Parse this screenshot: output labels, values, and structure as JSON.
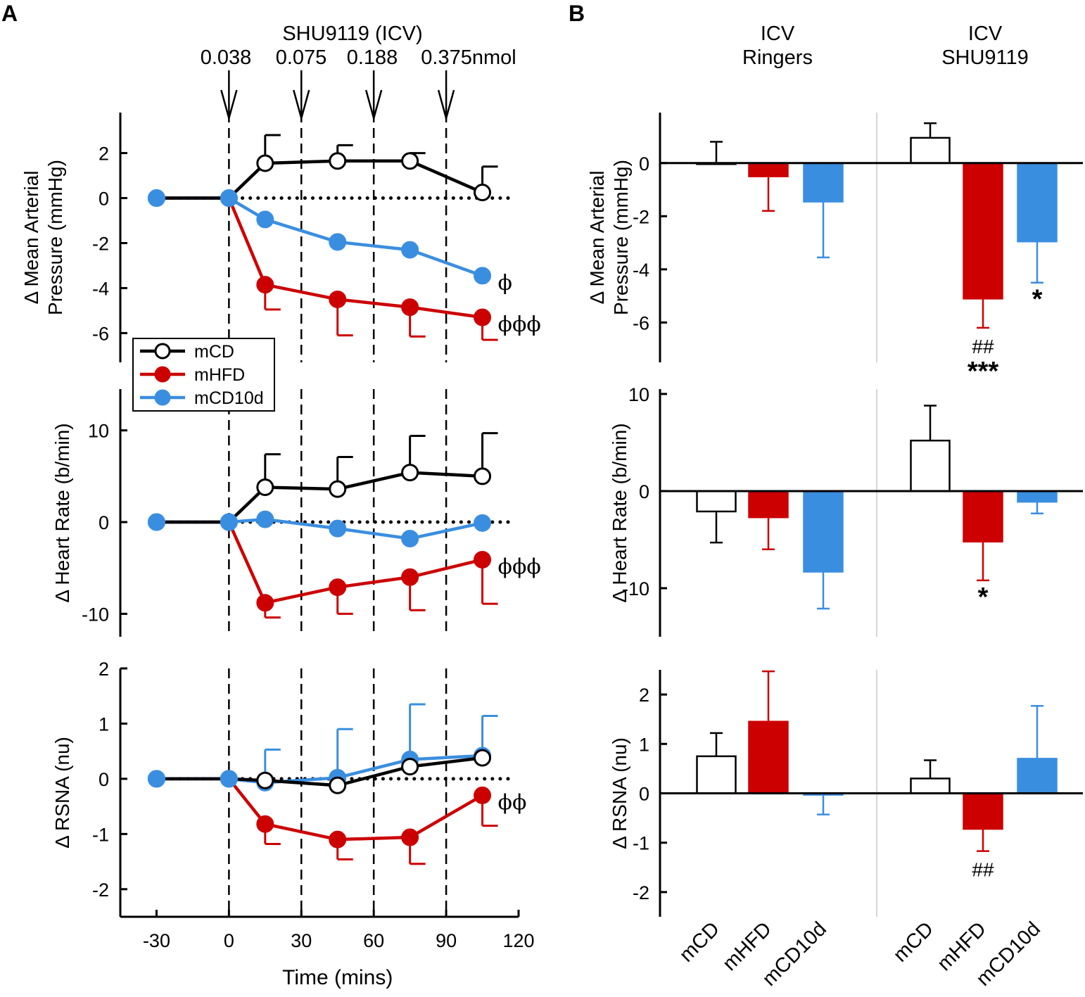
{
  "panel_labels": {
    "a": "A",
    "b": "B"
  },
  "injection": {
    "title": "SHU9119 (ICV)",
    "doses": [
      "0.038",
      "0.075",
      "0.188",
      "0.375nmol"
    ],
    "times": [
      0,
      30,
      60,
      90
    ]
  },
  "colors": {
    "mCD": "#000000",
    "mHFD": "#cc0000",
    "mCD10d": "#3a8ee0",
    "mCD_fill": "#ffffff"
  },
  "legend": {
    "items": [
      "mCD",
      "mHFD",
      "mCD10d"
    ]
  },
  "chart_data": [
    {
      "type": "line",
      "panel": "A",
      "title": "Mean Arterial Pressure",
      "ylabel": "Δ Mean Arterial Pressure (mmHg)",
      "ylabel_lines": [
        "Δ Mean Arterial",
        "Pressure (mmHg)"
      ],
      "ylim": [
        -7.3,
        3.8
      ],
      "yticks": [
        2,
        0,
        -2,
        -4,
        -6
      ],
      "ytick_labels": [
        "2",
        "0",
        "-2",
        "-4",
        "-6"
      ],
      "x": [
        -30,
        0,
        15,
        45,
        75,
        105
      ],
      "series": [
        {
          "name": "mCD",
          "values": [
            0,
            0,
            1.55,
            1.65,
            1.65,
            0.25
          ],
          "err_up": [
            0,
            0,
            1.25,
            0.7,
            0.35,
            1.15
          ],
          "err_down": [
            0,
            0,
            0,
            0,
            0,
            0
          ]
        },
        {
          "name": "mHFD",
          "values": [
            0,
            0,
            -3.85,
            -4.5,
            -4.85,
            -5.3
          ],
          "err_up": [
            0,
            0,
            0,
            0,
            0,
            0
          ],
          "err_down": [
            0,
            0,
            1.1,
            1.6,
            1.3,
            1.0
          ]
        },
        {
          "name": "mCD10d",
          "values": [
            0,
            0,
            -0.95,
            -1.95,
            -2.3,
            -3.45
          ],
          "err_up": [
            0,
            0,
            0,
            0,
            0,
            0
          ],
          "err_down": [
            0,
            0,
            0,
            0,
            0,
            0
          ]
        }
      ],
      "annotations": [
        {
          "text": "ϕ",
          "series": "mCD10d"
        },
        {
          "text": "ϕϕϕ",
          "series": "mHFD"
        }
      ]
    },
    {
      "type": "line",
      "panel": "A",
      "title": "Heart Rate",
      "ylabel": "Δ Heart Rate (b/min)",
      "ylabel_lines": [
        "Δ Heart Rate (b/min)"
      ],
      "ylim": [
        -12.5,
        14.5
      ],
      "yticks": [
        10,
        0,
        -10
      ],
      "ytick_labels": [
        "10",
        "0",
        "-10"
      ],
      "x": [
        -30,
        0,
        15,
        45,
        75,
        105
      ],
      "series": [
        {
          "name": "mCD",
          "values": [
            0,
            0,
            3.8,
            3.6,
            5.4,
            5.0
          ],
          "err_up": [
            0,
            0,
            3.6,
            3.5,
            4.0,
            4.7
          ],
          "err_down": [
            0,
            0,
            0,
            0,
            0,
            0
          ]
        },
        {
          "name": "mHFD",
          "values": [
            0,
            0,
            -8.8,
            -7.1,
            -6.0,
            -4.1
          ],
          "err_up": [
            0,
            0,
            0,
            0,
            0,
            0
          ],
          "err_down": [
            0,
            0,
            1.6,
            2.9,
            3.6,
            4.8
          ]
        },
        {
          "name": "mCD10d",
          "values": [
            0,
            0,
            0.3,
            -0.7,
            -1.8,
            -0.1
          ],
          "err_up": [
            0,
            0,
            0,
            0,
            0,
            0
          ],
          "err_down": [
            0,
            0,
            0,
            0,
            0,
            0
          ]
        }
      ],
      "annotations": [
        {
          "text": "ϕϕϕ",
          "series": "mHFD"
        }
      ]
    },
    {
      "type": "line",
      "panel": "A",
      "title": "RSNA",
      "ylabel": "Δ RSNA (nu)",
      "ylabel_lines": [
        "Δ RSNA (nu)"
      ],
      "xlabel": "Time (mins)",
      "xlim": [
        -45,
        120
      ],
      "xticks": [
        -30,
        0,
        30,
        60,
        90,
        120
      ],
      "xtick_labels": [
        "-30",
        "0",
        "30",
        "60",
        "90",
        "120"
      ],
      "ylim": [
        -2.5,
        2.0
      ],
      "yticks": [
        2,
        1,
        0,
        -1,
        -2
      ],
      "ytick_labels": [
        "2",
        "1",
        "0",
        "-1",
        "-2"
      ],
      "x": [
        -30,
        0,
        15,
        45,
        75,
        105
      ],
      "series": [
        {
          "name": "mCD",
          "values": [
            0,
            0,
            -0.03,
            -0.12,
            0.22,
            0.38
          ],
          "err_up": [
            0,
            0,
            0,
            0,
            0,
            0
          ],
          "err_down": [
            0,
            0,
            0,
            0,
            0,
            0
          ]
        },
        {
          "name": "mHFD",
          "values": [
            0,
            0,
            -0.82,
            -1.1,
            -1.06,
            -0.3
          ],
          "err_up": [
            0,
            0,
            0,
            0,
            0,
            0
          ],
          "err_down": [
            0,
            0,
            0.36,
            0.36,
            0.48,
            0.55
          ]
        },
        {
          "name": "mCD10d",
          "values": [
            0,
            0,
            -0.07,
            0.02,
            0.35,
            0.42
          ],
          "err_up": [
            0,
            0,
            0.6,
            0.88,
            1.0,
            0.72
          ],
          "err_down": [
            0,
            0,
            0,
            0,
            0,
            0
          ]
        }
      ],
      "annotations": [
        {
          "text": "ϕϕ",
          "series": "mHFD"
        }
      ]
    },
    {
      "type": "bar",
      "panel": "B",
      "title": "Mean Arterial Pressure",
      "ylabel": "Δ Mean Arterial Pressure (mmHg)",
      "ylabel_lines": [
        "Δ Mean Arterial",
        "Pressure (mmHg)"
      ],
      "group_labels": [
        [
          "ICV",
          "Ringers"
        ],
        [
          "ICV",
          "SHU9119"
        ]
      ],
      "categories": [
        "mCD",
        "mHFD",
        "mCD10d",
        "mCD",
        "mHFD",
        "mCD10d"
      ],
      "ylim": [
        -7.5,
        1.9
      ],
      "yticks": [
        0,
        -2,
        -4,
        -6
      ],
      "ytick_labels": [
        "0",
        "-2",
        "-4",
        "-6"
      ],
      "values": [
        0,
        -0.5,
        -1.45,
        0.95,
        -5.1,
        -2.95
      ],
      "errors": [
        0.8,
        1.3,
        2.1,
        0.55,
        1.1,
        1.55
      ],
      "annotations": [
        {
          "bar": 4,
          "text": "##"
        },
        {
          "bar": 4,
          "text": "***"
        },
        {
          "bar": 5,
          "text": "*"
        }
      ]
    },
    {
      "type": "bar",
      "panel": "B",
      "title": "Heart Rate",
      "ylabel": "Δ Heart Rate (b/min)",
      "ylabel_lines": [
        "Δ Heart Rate (b/min)"
      ],
      "categories": [
        "mCD",
        "mHFD",
        "mCD10d",
        "mCD",
        "mHFD",
        "mCD10d"
      ],
      "ylim": [
        -15.0,
        10.5
      ],
      "yticks": [
        10,
        0,
        -10
      ],
      "ytick_labels": [
        "10",
        "0",
        "-10"
      ],
      "values": [
        -2.1,
        -2.7,
        -8.3,
        5.2,
        -5.2,
        -1.1
      ],
      "errors": [
        3.2,
        3.3,
        3.8,
        3.6,
        4.0,
        1.2
      ],
      "annotations": [
        {
          "bar": 4,
          "text": "*"
        }
      ]
    },
    {
      "type": "bar",
      "panel": "B",
      "title": "RSNA",
      "ylabel": "Δ RSNA (nu)",
      "ylabel_lines": [
        "Δ RSNA (nu)"
      ],
      "categories": [
        "mCD",
        "mHFD",
        "mCD10d",
        "mCD",
        "mHFD",
        "mCD10d"
      ],
      "ylim": [
        -2.5,
        2.5
      ],
      "yticks": [
        2,
        1,
        0,
        -1,
        -2
      ],
      "ytick_labels": [
        "2",
        "1",
        "0",
        "-1",
        "-2"
      ],
      "values": [
        0.75,
        1.45,
        -0.03,
        0.3,
        -0.72,
        0.7
      ],
      "errors": [
        0.47,
        1.02,
        0.4,
        0.37,
        0.45,
        1.07
      ],
      "annotations": [
        {
          "bar": 4,
          "text": "##"
        }
      ]
    }
  ]
}
